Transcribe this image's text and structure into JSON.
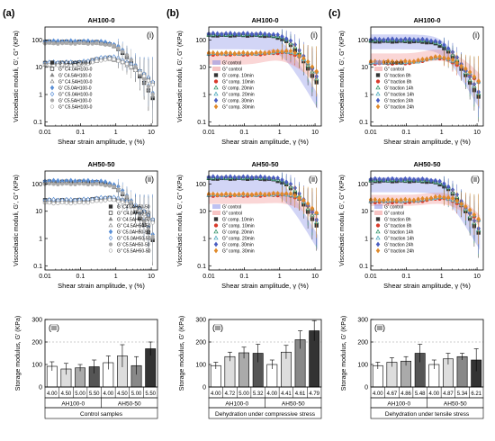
{
  "chart_data": [
    {
      "panel": "a-i",
      "letter": "(a)",
      "roman": "(i)",
      "title": "AH100-0",
      "type": "scatter",
      "xlabel": "Shear strain amplitude, γ (%)",
      "ylabel": "Viscoelastic moduli, G′, G″ (KPa)",
      "xscale": "log",
      "yscale": "log",
      "xlim": [
        0.01,
        15
      ],
      "ylim": [
        0.07,
        300
      ],
      "xticks": [
        "0.01",
        "0.1",
        "1",
        "10"
      ],
      "yticks": [
        "0.1",
        "1",
        "10",
        "100"
      ],
      "legend": "left",
      "series": [
        {
          "name": "G′ C4.0AH100-0",
          "color": "#333333",
          "marker": "sq",
          "fill": true,
          "kind": "Gp",
          "plateau": 85,
          "yc": 1.3
        },
        {
          "name": "G″ C4.0AH100-0",
          "color": "#333333",
          "marker": "sq",
          "fill": false,
          "kind": "Gpp",
          "plateau": 14,
          "peak": 22,
          "xp": 0.6
        },
        {
          "name": "G′ C4.5AH100-0",
          "color": "#888888",
          "marker": "tri",
          "fill": true,
          "kind": "Gp",
          "plateau": 80,
          "yc": 1.4
        },
        {
          "name": "G″ C4.5AH100-0",
          "color": "#888888",
          "marker": "tri",
          "fill": false,
          "kind": "Gpp",
          "plateau": 12,
          "peak": 20,
          "xp": 0.6
        },
        {
          "name": "G′ C5.0AH100-0",
          "color": "#5a8fd6",
          "marker": "dia",
          "fill": true,
          "kind": "Gp",
          "plateau": 90,
          "yc": 1.5
        },
        {
          "name": "G″ C5.0AH100-0",
          "color": "#5a8fd6",
          "marker": "dia",
          "fill": false,
          "kind": "Gpp",
          "plateau": 15,
          "peak": 24,
          "xp": 0.7
        },
        {
          "name": "G′ C5.5AH100-0",
          "color": "#aaaaaa",
          "marker": "circ",
          "fill": true,
          "kind": "Gp",
          "plateau": 75,
          "yc": 1.6
        },
        {
          "name": "G″ C5.5AH100-0",
          "color": "#aaaaaa",
          "marker": "circ",
          "fill": false,
          "kind": "Gpp",
          "plateau": 12,
          "peak": 20,
          "xp": 0.7
        }
      ]
    },
    {
      "panel": "b-i",
      "letter": "(b)",
      "roman": "(i)",
      "title": "AH100-0",
      "type": "scatter",
      "xlabel": "Shear strain amplitude, γ (%)",
      "ylabel": "Viscoelastic moduli, G′, G″ (KPa)",
      "xscale": "log",
      "yscale": "log",
      "xlim": [
        0.01,
        15
      ],
      "ylim": [
        0.07,
        300
      ],
      "xticks": [
        "0.01",
        "0.1",
        "1",
        "10"
      ],
      "yticks": [
        "0.1",
        "1",
        "10",
        "100"
      ],
      "legend": "left",
      "series": [
        {
          "name": "G′ control",
          "color": "#7d86e6",
          "marker": "band",
          "kind": "Gp",
          "plateau": 100,
          "yc": 1.2
        },
        {
          "name": "G″ control",
          "color": "#f08a8a",
          "marker": "band",
          "kind": "Gpp",
          "plateau": 20,
          "peak": 28,
          "xp": 0.8
        },
        {
          "name": "G′ comp. 10min",
          "color": "#333333",
          "marker": "sq",
          "fill": true,
          "kind": "Gp",
          "plateau": 150,
          "yc": 1.8
        },
        {
          "name": "G″ comp. 10min",
          "color": "#d93a2b",
          "marker": "circ",
          "fill": true,
          "kind": "Gpp",
          "plateau": 30,
          "peak": 35,
          "xp": 1.5
        },
        {
          "name": "G′ comp. 20min",
          "color": "#1f8a5b",
          "marker": "tri",
          "fill": false,
          "kind": "Gp",
          "plateau": 160,
          "yc": 2.0
        },
        {
          "name": "G″ comp. 20min",
          "color": "#3aa0b4",
          "marker": "tri",
          "fill": false,
          "kind": "Gpp",
          "plateau": 32,
          "peak": 38,
          "xp": 1.5
        },
        {
          "name": "G′ comp. 30min",
          "color": "#4c5fc2",
          "marker": "dia",
          "fill": true,
          "kind": "Gp",
          "plateau": 170,
          "yc": 2.2
        },
        {
          "name": "G″ comp. 30min",
          "color": "#e08a2a",
          "marker": "dia",
          "fill": true,
          "kind": "Gpp",
          "plateau": 33,
          "peak": 40,
          "xp": 1.6
        }
      ]
    },
    {
      "panel": "c-i",
      "letter": "(c)",
      "roman": "(i)",
      "title": "AH100-0",
      "type": "scatter",
      "xlabel": "Shear strain amplitude, γ (%)",
      "ylabel": "Viscoelastic moduli, G′, G″ (KPa)",
      "xscale": "log",
      "yscale": "log",
      "xlim": [
        0.01,
        15
      ],
      "ylim": [
        0.07,
        300
      ],
      "xticks": [
        "0.01",
        "0.1",
        "1",
        "10"
      ],
      "yticks": [
        "0.1",
        "1",
        "10",
        "100"
      ],
      "legend": "left",
      "series": [
        {
          "name": "G′ control",
          "color": "#7d86e6",
          "marker": "band",
          "kind": "Gp",
          "plateau": 100,
          "yc": 1.2
        },
        {
          "name": "G″ control",
          "color": "#f08a8a",
          "marker": "band",
          "kind": "Gpp",
          "plateau": 20,
          "peak": 28,
          "xp": 0.8
        },
        {
          "name": "G′ traction 8h",
          "color": "#333333",
          "marker": "sq",
          "fill": true,
          "kind": "Gp",
          "plateau": 90,
          "yc": 1.3
        },
        {
          "name": "G″ traction 8h",
          "color": "#d93a2b",
          "marker": "circ",
          "fill": true,
          "kind": "Gpp",
          "plateau": 14,
          "peak": 22,
          "xp": 0.8
        },
        {
          "name": "G′ traction 14h",
          "color": "#1f8a5b",
          "marker": "tri",
          "fill": false,
          "kind": "Gp",
          "plateau": 100,
          "yc": 1.4
        },
        {
          "name": "G″ traction 14h",
          "color": "#3aa0b4",
          "marker": "tri",
          "fill": false,
          "kind": "Gpp",
          "plateau": 15,
          "peak": 23,
          "xp": 0.9
        },
        {
          "name": "G′ traction 24h",
          "color": "#4c5fc2",
          "marker": "dia",
          "fill": true,
          "kind": "Gp",
          "plateau": 105,
          "yc": 1.5
        },
        {
          "name": "G″ traction 24h",
          "color": "#e08a2a",
          "marker": "dia",
          "fill": true,
          "kind": "Gpp",
          "plateau": 16,
          "peak": 24,
          "xp": 0.9
        }
      ]
    },
    {
      "panel": "a-ii",
      "letter": "",
      "roman": "(ii)",
      "title": "AH50-50",
      "type": "scatter",
      "xlabel": "Shear strain amplitude, γ (%)",
      "ylabel": "Viscoelastic moduli, G′, G″ (KPa)",
      "xscale": "log",
      "yscale": "log",
      "xlim": [
        0.01,
        15
      ],
      "ylim": [
        0.07,
        300
      ],
      "xticks": [
        "0.01",
        "0.1",
        "1",
        "10"
      ],
      "yticks": [
        "0.1",
        "1",
        "10",
        "100"
      ],
      "legend": "right",
      "series": [
        {
          "name": "G′ C4.0AH50-50",
          "color": "#333333",
          "marker": "sq",
          "fill": true,
          "kind": "Gp",
          "plateau": 120,
          "yc": 1.2
        },
        {
          "name": "G″ C4.0AH50-50",
          "color": "#333333",
          "marker": "sq",
          "fill": false,
          "kind": "Gpp",
          "plateau": 25,
          "peak": 30,
          "xp": 0.6
        },
        {
          "name": "G′ C4.5AH50-50",
          "color": "#888888",
          "marker": "tri",
          "fill": true,
          "kind": "Gp",
          "plateau": 110,
          "yc": 1.3
        },
        {
          "name": "G″ C4.5AH50-50",
          "color": "#888888",
          "marker": "tri",
          "fill": false,
          "kind": "Gpp",
          "plateau": 22,
          "peak": 28,
          "xp": 0.6
        },
        {
          "name": "G′ C5.0AH50-50",
          "color": "#5a8fd6",
          "marker": "dia",
          "fill": true,
          "kind": "Gp",
          "plateau": 130,
          "yc": 1.4
        },
        {
          "name": "G″ C5.0AH50-50",
          "color": "#5a8fd6",
          "marker": "dia",
          "fill": false,
          "kind": "Gpp",
          "plateau": 26,
          "peak": 32,
          "xp": 0.7
        },
        {
          "name": "G′ C5.5AH50-50",
          "color": "#aaaaaa",
          "marker": "circ",
          "fill": true,
          "kind": "Gp",
          "plateau": 100,
          "yc": 1.5
        },
        {
          "name": "G″ C5.5AH50-50",
          "color": "#aaaaaa",
          "marker": "circ",
          "fill": false,
          "kind": "Gpp",
          "plateau": 20,
          "peak": 26,
          "xp": 0.7
        }
      ]
    },
    {
      "panel": "b-ii",
      "letter": "",
      "roman": "(ii)",
      "title": "AH50-50",
      "type": "scatter",
      "xlabel": "Shear strain amplitude, γ (%)",
      "ylabel": "Viscoelastic moduli, G′, G″ (KPa)",
      "xscale": "log",
      "yscale": "log",
      "xlim": [
        0.01,
        15
      ],
      "ylim": [
        0.07,
        300
      ],
      "xticks": [
        "0.01",
        "0.1",
        "1",
        "10"
      ],
      "yticks": [
        "0.1",
        "1",
        "10",
        "100"
      ],
      "legend": "left",
      "series": [
        {
          "name": "G′ control",
          "color": "#7d86e6",
          "marker": "band",
          "kind": "Gp",
          "plateau": 110,
          "yc": 1.3
        },
        {
          "name": "G″ control",
          "color": "#f08a8a",
          "marker": "band",
          "kind": "Gpp",
          "plateau": 30,
          "peak": 32,
          "xp": 0.8
        },
        {
          "name": "G′ comp. 10min",
          "color": "#333333",
          "marker": "sq",
          "fill": true,
          "kind": "Gp",
          "plateau": 160,
          "yc": 1.8
        },
        {
          "name": "G″ comp. 10min",
          "color": "#d93a2b",
          "marker": "circ",
          "fill": true,
          "kind": "Gpp",
          "plateau": 38,
          "peak": 40,
          "xp": 1.4
        },
        {
          "name": "G′ comp. 20min",
          "color": "#1f8a5b",
          "marker": "tri",
          "fill": false,
          "kind": "Gp",
          "plateau": 170,
          "yc": 2.0
        },
        {
          "name": "G″ comp. 20min",
          "color": "#3aa0b4",
          "marker": "tri",
          "fill": false,
          "kind": "Gpp",
          "plateau": 40,
          "peak": 42,
          "xp": 1.4
        },
        {
          "name": "G′ comp. 30min",
          "color": "#4c5fc2",
          "marker": "dia",
          "fill": true,
          "kind": "Gp",
          "plateau": 180,
          "yc": 2.2
        },
        {
          "name": "G″ comp. 30min",
          "color": "#e08a2a",
          "marker": "dia",
          "fill": true,
          "kind": "Gpp",
          "plateau": 42,
          "peak": 45,
          "xp": 1.5
        }
      ]
    },
    {
      "panel": "c-ii",
      "letter": "",
      "roman": "(ii)",
      "title": "AH50-50",
      "type": "scatter",
      "xlabel": "Shear strain amplitude, γ (%)",
      "ylabel": "Viscoelastic moduli, G′, G″ (KPa)",
      "xscale": "log",
      "yscale": "log",
      "xlim": [
        0.01,
        15
      ],
      "ylim": [
        0.07,
        300
      ],
      "xticks": [
        "0.01",
        "0.1",
        "1",
        "10"
      ],
      "yticks": [
        "0.1",
        "1",
        "10",
        "100"
      ],
      "legend": "left",
      "series": [
        {
          "name": "G′ control",
          "color": "#7d86e6",
          "marker": "band",
          "kind": "Gp",
          "plateau": 110,
          "yc": 1.3
        },
        {
          "name": "G″ control",
          "color": "#f08a8a",
          "marker": "band",
          "kind": "Gpp",
          "plateau": 25,
          "peak": 30,
          "xp": 0.8
        },
        {
          "name": "G′ traction 8h",
          "color": "#333333",
          "marker": "sq",
          "fill": true,
          "kind": "Gp",
          "plateau": 130,
          "yc": 1.5
        },
        {
          "name": "G″ traction 8h",
          "color": "#d93a2b",
          "marker": "circ",
          "fill": true,
          "kind": "Gpp",
          "plateau": 22,
          "peak": 30,
          "xp": 1.0
        },
        {
          "name": "G′ traction 14h",
          "color": "#1f8a5b",
          "marker": "tri",
          "fill": false,
          "kind": "Gp",
          "plateau": 140,
          "yc": 1.6
        },
        {
          "name": "G″ traction 14h",
          "color": "#3aa0b4",
          "marker": "tri",
          "fill": false,
          "kind": "Gpp",
          "plateau": 24,
          "peak": 32,
          "xp": 1.0
        },
        {
          "name": "G′ traction 24h",
          "color": "#4c5fc2",
          "marker": "dia",
          "fill": true,
          "kind": "Gp",
          "plateau": 150,
          "yc": 1.7
        },
        {
          "name": "G″ traction 24h",
          "color": "#e08a2a",
          "marker": "dia",
          "fill": true,
          "kind": "Gpp",
          "plateau": 26,
          "peak": 34,
          "xp": 1.1
        }
      ]
    },
    {
      "panel": "a-iii",
      "roman": "(iii)",
      "type": "bar",
      "ylabel": "Storage modulus, G′ (KPa)",
      "ylim": [
        0,
        300
      ],
      "yticks": [
        "0",
        "100",
        "200",
        "300"
      ],
      "categories": [
        "4.00",
        "4.50",
        "5.00",
        "5.50",
        "4.00",
        "4.50",
        "5.00",
        "5.50"
      ],
      "values": [
        92,
        80,
        85,
        90,
        108,
        138,
        95,
        170
      ],
      "errors": [
        20,
        25,
        15,
        30,
        30,
        50,
        40,
        30
      ],
      "colors": [
        "#ffffff",
        "#dddddd",
        "#aaaaaa",
        "#555555",
        "#ffffff",
        "#dddddd",
        "#888888",
        "#333333"
      ],
      "groups": [
        "AH100-0",
        "AH50-50"
      ],
      "caption": "Control samples"
    },
    {
      "panel": "b-iii",
      "roman": "(iii)",
      "type": "bar",
      "ylabel": "Storage modulus, G′ (KPa)",
      "ylim": [
        0,
        300
      ],
      "yticks": [
        "0",
        "100",
        "200",
        "300"
      ],
      "categories": [
        "4.00",
        "4.72",
        "5.00",
        "5.32",
        "4.00",
        "4.41",
        "4.61",
        "4.79"
      ],
      "values": [
        95,
        135,
        152,
        150,
        100,
        155,
        210,
        250
      ],
      "errors": [
        15,
        20,
        25,
        40,
        20,
        30,
        40,
        45
      ],
      "colors": [
        "#ffffff",
        "#dddddd",
        "#aaaaaa",
        "#555555",
        "#ffffff",
        "#dddddd",
        "#888888",
        "#333333"
      ],
      "groups": [
        "AH100-0",
        "AH50-50"
      ],
      "caption": "Dehydration under compressive stress"
    },
    {
      "panel": "c-iii",
      "roman": "(iii)",
      "type": "bar",
      "ylabel": "Storage modulus, G′ (KPa)",
      "ylim": [
        0,
        300
      ],
      "yticks": [
        "0",
        "100",
        "200",
        "300"
      ],
      "categories": [
        "4.00",
        "4.67",
        "4.86",
        "5.48",
        "4.00",
        "4.87",
        "5.34",
        "6.21"
      ],
      "values": [
        95,
        110,
        115,
        150,
        100,
        125,
        135,
        120
      ],
      "errors": [
        15,
        20,
        20,
        40,
        20,
        25,
        15,
        50
      ],
      "colors": [
        "#ffffff",
        "#dddddd",
        "#aaaaaa",
        "#555555",
        "#ffffff",
        "#dddddd",
        "#888888",
        "#333333"
      ],
      "groups": [
        "AH100-0",
        "AH50-50"
      ],
      "caption": "Dehydration under tensile stress"
    }
  ]
}
